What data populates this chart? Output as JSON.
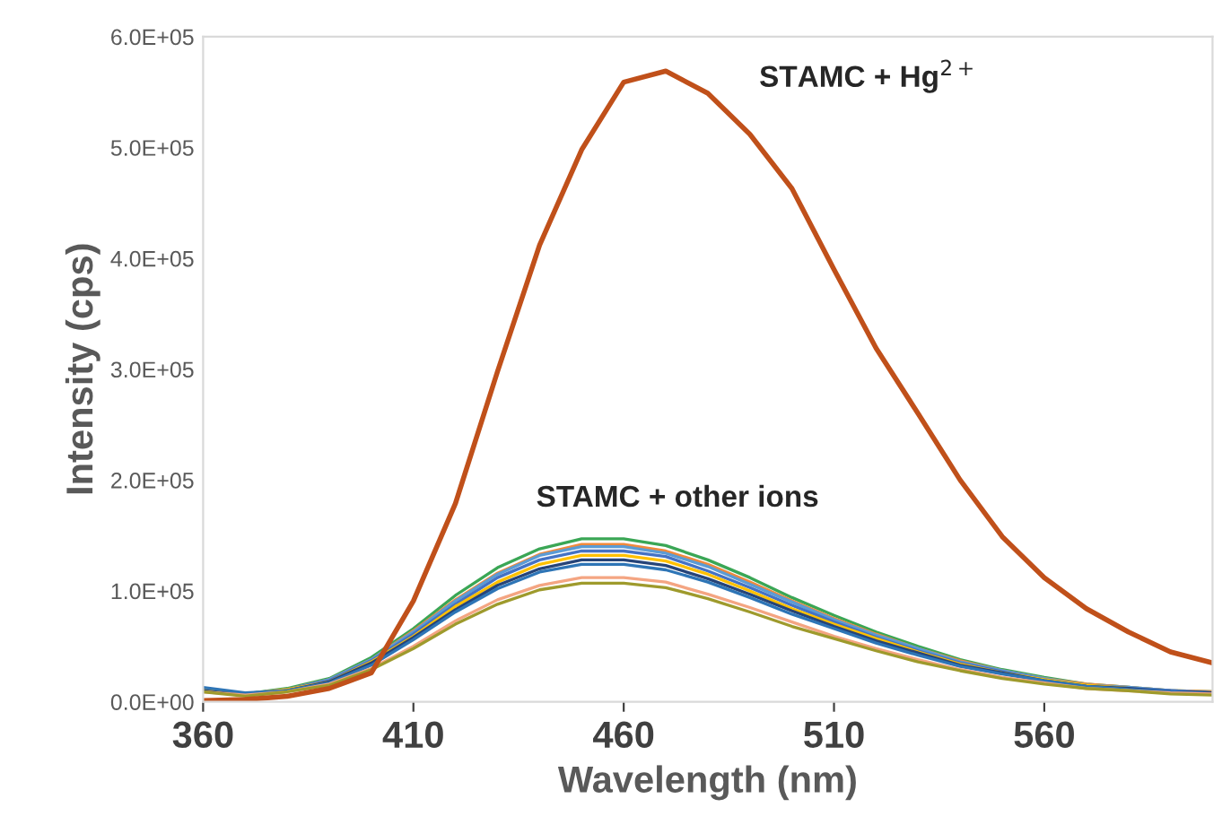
{
  "chart_data": {
    "type": "line",
    "xlabel": "Wavelength (nm)",
    "ylabel": "Intensity (cps)",
    "x": [
      360,
      370,
      380,
      390,
      400,
      410,
      420,
      430,
      440,
      450,
      460,
      470,
      480,
      490,
      500,
      510,
      520,
      530,
      540,
      550,
      560,
      570,
      580,
      590,
      600
    ],
    "xlim": [
      360,
      600
    ],
    "xticks": [
      360,
      410,
      460,
      510,
      560
    ],
    "ylim": [
      0,
      600000
    ],
    "yticks": [
      {
        "value": 0,
        "label": "0.0E+00"
      },
      {
        "value": 100000,
        "label": "1.0E+05"
      },
      {
        "value": 200000,
        "label": "2.0E+05"
      },
      {
        "value": 300000,
        "label": "3.0E+05"
      },
      {
        "value": 400000,
        "label": "4.0E+05"
      },
      {
        "value": 500000,
        "label": "5.0E+05"
      },
      {
        "value": 600000,
        "label": "6.0E+05"
      }
    ],
    "grid": false,
    "legend": false,
    "marker": "none",
    "line_style": "solid",
    "series": [
      {
        "color": "#3aa655",
        "values": [
          12000,
          7000,
          12000,
          21000,
          40000,
          66000,
          96000,
          121000,
          138000,
          147000,
          147000,
          141000,
          128000,
          112000,
          94000,
          78000,
          63000,
          50000,
          38000,
          29000,
          22000,
          16000,
          13000,
          10000,
          9000
        ]
      },
      {
        "color": "#f08a3c",
        "values": [
          11000,
          7000,
          11000,
          20000,
          38000,
          64000,
          92000,
          116000,
          133000,
          142000,
          142000,
          136000,
          124000,
          108000,
          91000,
          75000,
          61000,
          48000,
          37000,
          28000,
          21000,
          16000,
          13000,
          10000,
          9000
        ]
      },
      {
        "color": "#5b9bd5",
        "values": [
          11000,
          7000,
          11000,
          20000,
          38000,
          63000,
          91000,
          115000,
          132000,
          140000,
          140000,
          134000,
          122000,
          106000,
          90000,
          74000,
          60000,
          48000,
          36000,
          28000,
          21000,
          15000,
          13000,
          10000,
          8000
        ]
      },
      {
        "color": "#4472c4",
        "values": [
          11000,
          7000,
          11000,
          19000,
          37000,
          61000,
          88000,
          112000,
          128000,
          136000,
          136000,
          131000,
          118000,
          103000,
          87000,
          72000,
          58000,
          46000,
          35000,
          27000,
          20000,
          15000,
          12000,
          10000,
          8000
        ]
      },
      {
        "color": "#ffc000",
        "values": [
          11000,
          7000,
          11000,
          18000,
          36000,
          59000,
          86000,
          108000,
          124000,
          132000,
          132000,
          127000,
          115000,
          100000,
          84000,
          70000,
          57000,
          45000,
          34000,
          26000,
          20000,
          15000,
          12000,
          null,
          null
        ]
      },
      {
        "color": "#264478",
        "values": [
          10000,
          6000,
          10000,
          18000,
          35000,
          58000,
          83000,
          105000,
          120000,
          128000,
          128000,
          123000,
          111000,
          97000,
          82000,
          68000,
          55000,
          44000,
          33000,
          26000,
          19000,
          14000,
          12000,
          9000,
          8000
        ]
      },
      {
        "color": "#2e75b6",
        "values": [
          13000,
          8000,
          10000,
          17000,
          33000,
          56000,
          81000,
          102000,
          117000,
          124000,
          124000,
          119000,
          108000,
          94000,
          79000,
          66000,
          53000,
          42000,
          32000,
          25000,
          19000,
          14000,
          11000,
          9000,
          7000
        ]
      },
      {
        "color": "#f4a582",
        "values": [
          9000,
          6000,
          9000,
          16000,
          30000,
          50000,
          73000,
          92000,
          105000,
          112000,
          112000,
          108000,
          97000,
          85000,
          72000,
          59000,
          48000,
          38000,
          29000,
          22000,
          17000,
          12000,
          10000,
          8000,
          7000
        ]
      },
      {
        "color": "#9e9a2c",
        "values": [
          9000,
          5000,
          9000,
          15000,
          29000,
          48000,
          70000,
          88000,
          101000,
          107000,
          107000,
          103000,
          93000,
          81000,
          68000,
          57000,
          46000,
          36000,
          28000,
          21000,
          16000,
          12000,
          10000,
          7000,
          6000
        ]
      },
      {
        "color": "#c0501a",
        "values": [
          1000,
          2000,
          5000,
          12000,
          26000,
          91000,
          179000,
          298000,
          412000,
          498000,
          559000,
          569000,
          549000,
          512000,
          463000,
          390000,
          319000,
          260000,
          200000,
          149000,
          112000,
          84000,
          63000,
          45000,
          35000
        ]
      }
    ],
    "annotations": [
      "STAMC + Hg$^{2+}$",
      "STAMC + other ions"
    ]
  }
}
